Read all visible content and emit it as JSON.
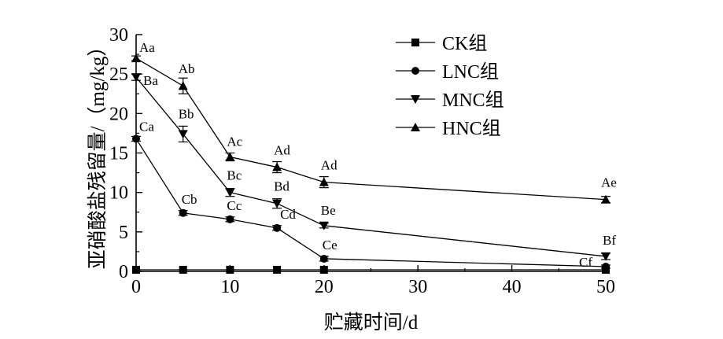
{
  "chart_data": {
    "type": "line",
    "x": [
      0,
      5,
      10,
      15,
      20,
      50
    ],
    "xlabel": "贮藏时间/d",
    "ylabel": "亚硝酸盐残留量/（mg/kg）",
    "xlim": [
      0,
      50
    ],
    "ylim": [
      0,
      30
    ],
    "xticks": [
      "0",
      "10",
      "20",
      "30",
      "40",
      "50"
    ],
    "yticks": [
      "0",
      "5",
      "10",
      "15",
      "20",
      "25",
      "30"
    ],
    "grid": false,
    "legend_position": "top-right",
    "series": [
      {
        "name": "CK组",
        "marker": "square",
        "values": [
          0.2,
          0.2,
          0.2,
          0.2,
          0.2,
          0.2
        ],
        "error": [
          0,
          0,
          0,
          0,
          0,
          0
        ],
        "labels": [
          "",
          "",
          "",
          "",
          "",
          ""
        ]
      },
      {
        "name": "LNC组",
        "marker": "circle",
        "values": [
          16.8,
          7.4,
          6.6,
          5.5,
          1.6,
          0.6
        ],
        "error": [
          0.3,
          0.3,
          0.3,
          0.3,
          0.3,
          0.2
        ],
        "labels": [
          "Ca",
          "Cb",
          "Cc",
          "Cd",
          "Ce",
          "Cf"
        ]
      },
      {
        "name": "MNC组",
        "marker": "triangle-down",
        "values": [
          24.6,
          17.4,
          10.0,
          8.6,
          5.8,
          1.9
        ],
        "error": [
          0.4,
          1.0,
          0.5,
          0.6,
          0.3,
          0.4
        ],
        "labels": [
          "Ba",
          "Bb",
          "Bc",
          "Bd",
          "Be",
          "Bf"
        ]
      },
      {
        "name": "HNC组",
        "marker": "triangle-up",
        "values": [
          27.0,
          23.5,
          14.5,
          13.2,
          11.3,
          9.1
        ],
        "error": [
          0.3,
          1.0,
          0.5,
          0.7,
          0.7,
          0.4
        ],
        "labels": [
          "Aa",
          "Ab",
          "Ac",
          "Ad",
          "Ad",
          "Ae"
        ]
      }
    ]
  }
}
